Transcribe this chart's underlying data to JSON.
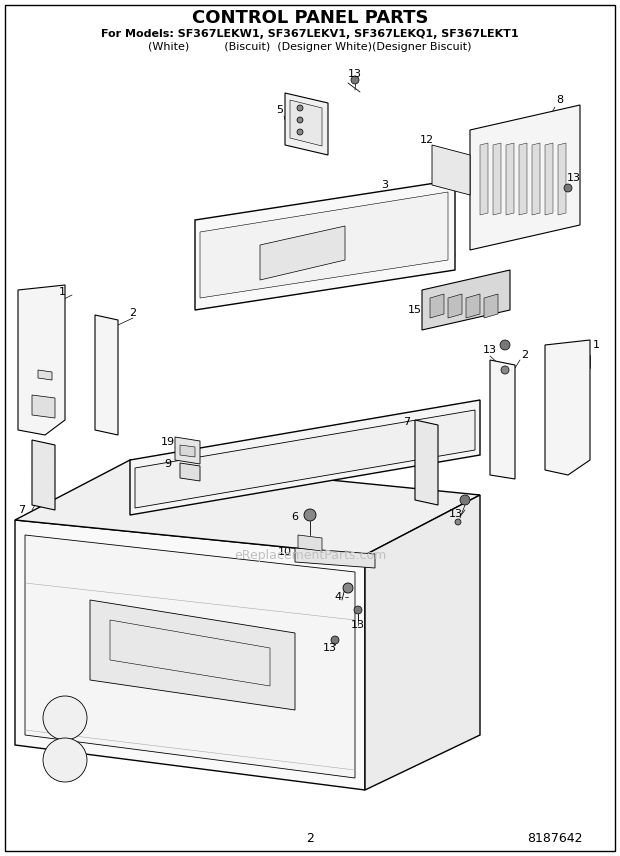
{
  "title": "CONTROL PANEL PARTS",
  "subtitle1": "For Models: SF367LEKW1, SF367LEKV1, SF367LEKQ1, SF367LEKT1",
  "subtitle2": "(White)          (Biscuit)  (Designer White)(Designer Biscuit)",
  "page_num": "2",
  "part_num": "8187642",
  "bg_color": "#ffffff",
  "watermark": "eReplacementParts.com",
  "title_fontsize": 13,
  "subtitle_fontsize": 8,
  "label_fontsize": 8,
  "footer_fontsize": 9
}
